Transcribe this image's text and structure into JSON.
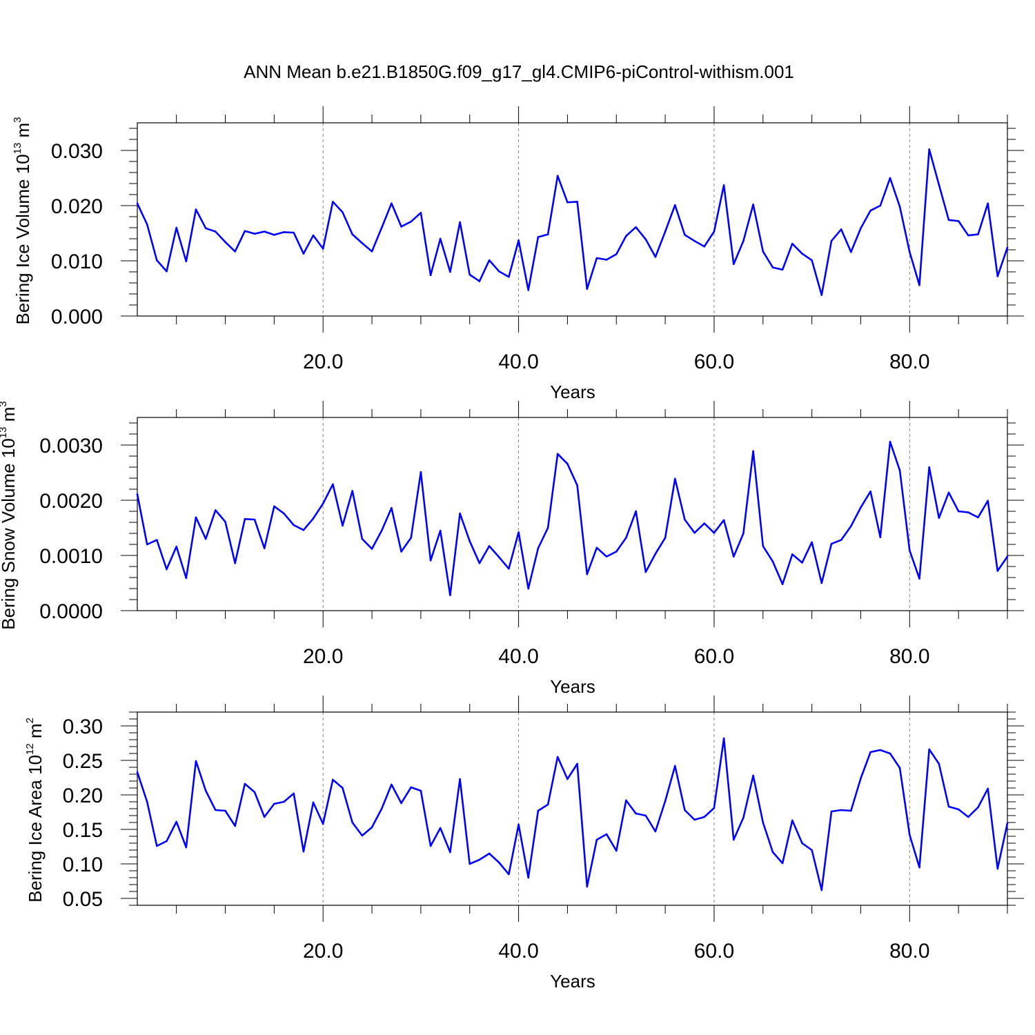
{
  "title": "ANN Mean b.e21.B1850G.f09_g17_gl4.CMIP6-piControl-withism.001",
  "colors": {
    "line": "#0000ff",
    "axis": "#000000",
    "grid": "#7f7f7f"
  },
  "chart_data": [
    {
      "type": "line",
      "ylabel": {
        "text": "Bering Ice Volume 10",
        "sup": "13",
        "unit": "m",
        "unit_sup": "3"
      },
      "xlabel": "Years",
      "xlim": [
        1,
        90
      ],
      "ylim": [
        0,
        0.035
      ],
      "xticks": [
        20,
        40,
        60,
        80
      ],
      "xtick_labels": [
        "20.0",
        "40.0",
        "60.0",
        "80.0"
      ],
      "yticks": [
        0,
        0.01,
        0.02,
        0.03
      ],
      "ytick_labels": [
        "0.000",
        "0.010",
        "0.020",
        "0.030"
      ],
      "y_minor_step": 0.002,
      "grid": "vertical dashed at major x ticks",
      "x": [
        1,
        2,
        3,
        4,
        5,
        6,
        7,
        8,
        9,
        10,
        11,
        12,
        13,
        14,
        15,
        16,
        17,
        18,
        19,
        20,
        21,
        22,
        23,
        24,
        25,
        26,
        27,
        28,
        29,
        30,
        31,
        32,
        33,
        34,
        35,
        36,
        37,
        38,
        39,
        40,
        41,
        42,
        43,
        44,
        45,
        46,
        47,
        48,
        49,
        50,
        51,
        52,
        53,
        54,
        55,
        56,
        57,
        58,
        59,
        60,
        61,
        62,
        63,
        64,
        65,
        66,
        67,
        68,
        69,
        70,
        71,
        72,
        73,
        74,
        75,
        76,
        77,
        78,
        79,
        80,
        81,
        82,
        83,
        84,
        85,
        86,
        87,
        88,
        89,
        90
      ],
      "values": [
        0.0204,
        0.0166,
        0.0101,
        0.0081,
        0.016,
        0.0099,
        0.0193,
        0.0159,
        0.0153,
        0.0134,
        0.0117,
        0.0154,
        0.0149,
        0.0153,
        0.0147,
        0.0152,
        0.0151,
        0.0113,
        0.0146,
        0.0122,
        0.0207,
        0.0188,
        0.0148,
        0.0132,
        0.0117,
        0.016,
        0.0204,
        0.0162,
        0.0171,
        0.0187,
        0.0074,
        0.014,
        0.008,
        0.017,
        0.0075,
        0.0063,
        0.0101,
        0.0081,
        0.0071,
        0.0137,
        0.0047,
        0.0143,
        0.0148,
        0.0254,
        0.0206,
        0.0207,
        0.0049,
        0.0105,
        0.0102,
        0.0112,
        0.0145,
        0.0161,
        0.0139,
        0.0107,
        0.0153,
        0.0201,
        0.0147,
        0.0136,
        0.0126,
        0.0153,
        0.0237,
        0.0094,
        0.0136,
        0.0202,
        0.0117,
        0.0088,
        0.0084,
        0.0131,
        0.0113,
        0.0101,
        0.0038,
        0.0136,
        0.0157,
        0.0116,
        0.0159,
        0.0191,
        0.02,
        0.025,
        0.0198,
        0.0116,
        0.0056,
        0.0302,
        0.0238,
        0.0174,
        0.0172,
        0.0146,
        0.0148,
        0.0204,
        0.0072,
        0.0124
      ]
    },
    {
      "type": "line",
      "ylabel": {
        "text": "Bering Snow Volume 10",
        "sup": "13",
        "unit": "m",
        "unit_sup": "3"
      },
      "xlabel": "Years",
      "xlim": [
        1,
        90
      ],
      "ylim": [
        0,
        0.0035
      ],
      "xticks": [
        20,
        40,
        60,
        80
      ],
      "xtick_labels": [
        "20.0",
        "40.0",
        "60.0",
        "80.0"
      ],
      "yticks": [
        0,
        0.001,
        0.002,
        0.003
      ],
      "ytick_labels": [
        "0.0000",
        "0.0010",
        "0.0020",
        "0.0030"
      ],
      "y_minor_step": 0.0002,
      "grid": "vertical dashed at major x ticks",
      "x": [
        1,
        2,
        3,
        4,
        5,
        6,
        7,
        8,
        9,
        10,
        11,
        12,
        13,
        14,
        15,
        16,
        17,
        18,
        19,
        20,
        21,
        22,
        23,
        24,
        25,
        26,
        27,
        28,
        29,
        30,
        31,
        32,
        33,
        34,
        35,
        36,
        37,
        38,
        39,
        40,
        41,
        42,
        43,
        44,
        45,
        46,
        47,
        48,
        49,
        50,
        51,
        52,
        53,
        54,
        55,
        56,
        57,
        58,
        59,
        60,
        61,
        62,
        63,
        64,
        65,
        66,
        67,
        68,
        69,
        70,
        71,
        72,
        73,
        74,
        75,
        76,
        77,
        78,
        79,
        80,
        81,
        82,
        83,
        84,
        85,
        86,
        87,
        88,
        89,
        90
      ],
      "values": [
        0.00211,
        0.0012,
        0.00128,
        0.00075,
        0.00116,
        0.00059,
        0.00169,
        0.0013,
        0.00182,
        0.00161,
        0.00086,
        0.00166,
        0.00165,
        0.00113,
        0.00189,
        0.00176,
        0.00155,
        0.00146,
        0.00167,
        0.00194,
        0.00229,
        0.00154,
        0.00217,
        0.0013,
        0.00112,
        0.00145,
        0.00186,
        0.00107,
        0.00132,
        0.00251,
        0.00091,
        0.00145,
        0.00028,
        0.00176,
        0.00126,
        0.00086,
        0.00117,
        0.00097,
        0.00076,
        0.00142,
        0.0004,
        0.00113,
        0.0015,
        0.00284,
        0.00266,
        0.00227,
        0.00066,
        0.00114,
        0.00098,
        0.00107,
        0.00132,
        0.0018,
        0.0007,
        0.00103,
        0.00132,
        0.00239,
        0.00165,
        0.00141,
        0.00158,
        0.00141,
        0.00164,
        0.00098,
        0.0014,
        0.00289,
        0.00117,
        0.00089,
        0.00048,
        0.00102,
        0.00087,
        0.00124,
        0.0005,
        0.00121,
        0.00128,
        0.00153,
        0.00187,
        0.00216,
        0.00133,
        0.00306,
        0.00254,
        0.00109,
        0.00058,
        0.0026,
        0.00168,
        0.00214,
        0.0018,
        0.00178,
        0.00169,
        0.00199,
        0.00072,
        0.00098
      ]
    },
    {
      "type": "line",
      "ylabel": {
        "text": "Bering Ice Area 10",
        "sup": "12",
        "unit": "m",
        "unit_sup": "2"
      },
      "xlabel": "Years",
      "xlim": [
        1,
        90
      ],
      "ylim": [
        0.04,
        0.32
      ],
      "xticks": [
        20,
        40,
        60,
        80
      ],
      "xtick_labels": [
        "20.0",
        "40.0",
        "60.0",
        "80.0"
      ],
      "yticks": [
        0.05,
        0.1,
        0.15,
        0.2,
        0.25,
        0.3
      ],
      "ytick_labels": [
        "0.05",
        "0.10",
        "0.15",
        "0.20",
        "0.25",
        "0.30"
      ],
      "y_minor_step": 0.01,
      "grid": "vertical dashed at major x ticks",
      "x": [
        1,
        2,
        3,
        4,
        5,
        6,
        7,
        8,
        9,
        10,
        11,
        12,
        13,
        14,
        15,
        16,
        17,
        18,
        19,
        20,
        21,
        22,
        23,
        24,
        25,
        26,
        27,
        28,
        29,
        30,
        31,
        32,
        33,
        34,
        35,
        36,
        37,
        38,
        39,
        40,
        41,
        42,
        43,
        44,
        45,
        46,
        47,
        48,
        49,
        50,
        51,
        52,
        53,
        54,
        55,
        56,
        57,
        58,
        59,
        60,
        61,
        62,
        63,
        64,
        65,
        66,
        67,
        68,
        69,
        70,
        71,
        72,
        73,
        74,
        75,
        76,
        77,
        78,
        79,
        80,
        81,
        82,
        83,
        84,
        85,
        86,
        87,
        88,
        89,
        90
      ],
      "values": [
        0.233,
        0.19,
        0.126,
        0.133,
        0.161,
        0.124,
        0.249,
        0.206,
        0.178,
        0.177,
        0.155,
        0.216,
        0.204,
        0.168,
        0.187,
        0.19,
        0.202,
        0.118,
        0.189,
        0.158,
        0.222,
        0.21,
        0.16,
        0.141,
        0.153,
        0.18,
        0.215,
        0.188,
        0.211,
        0.206,
        0.126,
        0.152,
        0.117,
        0.223,
        0.1,
        0.106,
        0.115,
        0.102,
        0.085,
        0.157,
        0.08,
        0.177,
        0.186,
        0.255,
        0.223,
        0.245,
        0.067,
        0.135,
        0.143,
        0.119,
        0.192,
        0.173,
        0.17,
        0.147,
        0.191,
        0.242,
        0.178,
        0.164,
        0.168,
        0.181,
        0.282,
        0.135,
        0.167,
        0.228,
        0.16,
        0.117,
        0.101,
        0.163,
        0.13,
        0.12,
        0.062,
        0.176,
        0.178,
        0.177,
        0.224,
        0.262,
        0.265,
        0.26,
        0.239,
        0.142,
        0.095,
        0.266,
        0.245,
        0.183,
        0.179,
        0.168,
        0.182,
        0.209,
        0.093,
        0.159
      ]
    }
  ]
}
